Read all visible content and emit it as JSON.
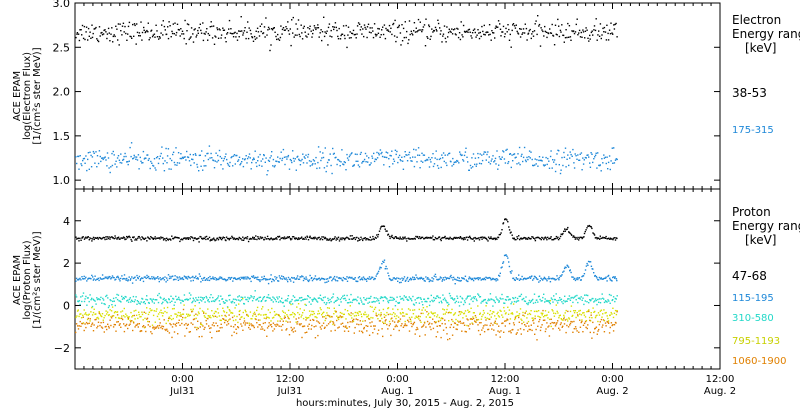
{
  "chart_data": [
    {
      "type": "scatter",
      "panel": "electron",
      "instrument_label": "ACE EPAM",
      "ylabel_line1": "log(Electron Flux)",
      "ylabel_line2": "[1/(cm²s ster MeV)]",
      "ylim": [
        0.9,
        3.0
      ],
      "y_ticks": [
        1.0,
        1.5,
        2.0,
        2.5,
        3.0
      ],
      "y_tick_labels": [
        "1.0",
        "1.5",
        "2.0",
        "2.5",
        "3.0"
      ],
      "legend_title": "Electron",
      "legend_subtitle": "Energy range",
      "legend_unit": "[keV]",
      "series": [
        {
          "name": "38-53",
          "color": "#000000",
          "mean": 2.68,
          "spread": 0.06
        },
        {
          "name": "175-315",
          "color": "#1e88d8",
          "mean": 1.24,
          "spread": 0.06
        }
      ]
    },
    {
      "type": "scatter",
      "panel": "proton",
      "instrument_label": "ACE EPAM",
      "ylabel_line1": "log(Proton Flux)",
      "ylabel_line2": "[1/(cm²s ster MeV)]",
      "ylim": [
        -3.0,
        5.5
      ],
      "y_ticks": [
        -2,
        0,
        2,
        4
      ],
      "y_tick_labels": [
        "−2",
        "0",
        "2",
        "4"
      ],
      "legend_title": "Proton",
      "legend_subtitle": "Energy range",
      "legend_unit": "[keV]",
      "series": [
        {
          "name": "47-68",
          "color": "#000000",
          "mean": 3.2,
          "spread": 0.05
        },
        {
          "name": "115-195",
          "color": "#1e88d8",
          "mean": 1.3,
          "spread": 0.07
        },
        {
          "name": "310-580",
          "color": "#22d8c8",
          "mean": 0.3,
          "spread": 0.12
        },
        {
          "name": "795-1193",
          "color": "#d8e000",
          "mean": -0.4,
          "spread": 0.2
        },
        {
          "name": "1060-1900",
          "color": "#e08000",
          "mean": -0.9,
          "spread": 0.25
        }
      ]
    }
  ],
  "x_axis": {
    "xlabel": "hours:minutes, July 30, 2015 - Aug. 2, 2015",
    "xlim_hours": [
      0,
      72
    ],
    "data_end_hours": 60.5,
    "ticks": [
      {
        "hour": 12,
        "time": "0:00",
        "date": "Jul31"
      },
      {
        "hour": 24,
        "time": "12:00",
        "date": "Jul31"
      },
      {
        "hour": 36,
        "time": "0:00",
        "date": "Aug. 1"
      },
      {
        "hour": 48,
        "time": "12:00",
        "date": "Aug. 1"
      },
      {
        "hour": 60,
        "time": "0:00",
        "date": "Aug. 2"
      },
      {
        "hour": 72,
        "time": "12:00",
        "date": "Aug. 2"
      }
    ]
  }
}
